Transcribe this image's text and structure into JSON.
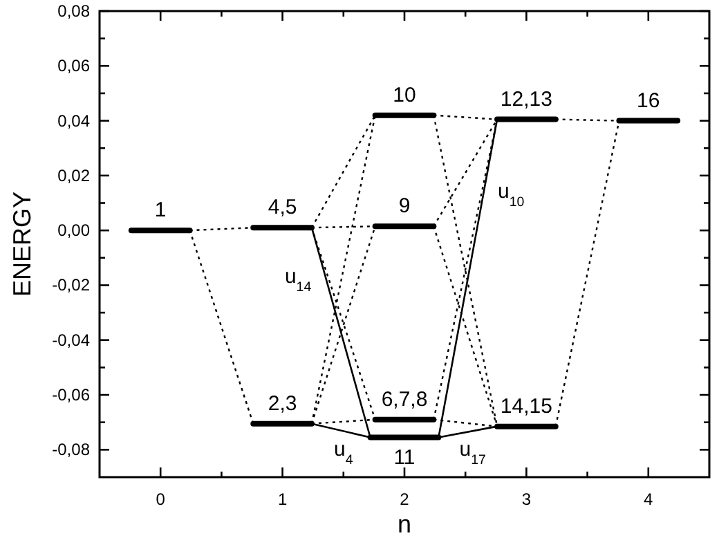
{
  "chart_data": {
    "type": "line",
    "xlabel": "n",
    "ylabel": "ENERGY",
    "xlim": [
      -0.5,
      4.5
    ],
    "ylim": [
      -0.09,
      0.08
    ],
    "xticks": [
      0,
      {
        "value": 0.5,
        "label": null
      },
      1,
      {
        "value": 1.5,
        "label": null
      },
      2,
      {
        "value": 2.5,
        "label": null
      },
      3,
      {
        "value": 3.5,
        "label": null
      },
      4
    ],
    "yticks": [
      {
        "value": 0.08,
        "label": "0,08"
      },
      {
        "value": 0.07,
        "label": null
      },
      {
        "value": 0.06,
        "label": "0,06"
      },
      {
        "value": 0.05,
        "label": null
      },
      {
        "value": 0.04,
        "label": "0,04"
      },
      {
        "value": 0.03,
        "label": null
      },
      {
        "value": 0.02,
        "label": "0,02"
      },
      {
        "value": 0.01,
        "label": null
      },
      {
        "value": 0,
        "label": "0,00"
      },
      {
        "value": -0.01,
        "label": null
      },
      {
        "value": -0.02,
        "label": "-0,02"
      },
      {
        "value": -0.03,
        "label": null
      },
      {
        "value": -0.04,
        "label": "-0,04"
      },
      {
        "value": -0.05,
        "label": null
      },
      {
        "value": -0.06,
        "label": "-0,06"
      },
      {
        "value": -0.07,
        "label": null
      },
      {
        "value": -0.08,
        "label": "-0,08"
      }
    ],
    "grid": false,
    "marker": "none",
    "series": [
      {
        "color": "#000000",
        "line_style": "solid",
        "x": [
          -0.24,
          0.24
        ],
        "values": [
          0,
          0
        ]
      },
      {
        "color": "#000000",
        "line_style": "solid",
        "x": [
          0.76,
          1.24
        ],
        "values": [
          0.001,
          0.001
        ]
      },
      {
        "color": "#000000",
        "line_style": "solid",
        "x": [
          0.76,
          1.24
        ],
        "values": [
          -0.0705,
          -0.0705
        ]
      },
      {
        "color": "#000000",
        "line_style": "solid",
        "x": [
          1.76,
          2.24
        ],
        "values": [
          0.042,
          0.042
        ]
      },
      {
        "color": "#000000",
        "line_style": "solid",
        "x": [
          1.76,
          2.24
        ],
        "values": [
          0.0015,
          0.0015
        ]
      },
      {
        "color": "#000000",
        "line_style": "solid",
        "x": [
          1.76,
          2.24
        ],
        "values": [
          -0.069,
          -0.069
        ]
      },
      {
        "color": "#000000",
        "line_style": "solid",
        "x": [
          1.72,
          2.28
        ],
        "values": [
          -0.0755,
          -0.0755
        ]
      },
      {
        "color": "#000000",
        "line_style": "solid",
        "x": [
          2.76,
          3.24
        ],
        "values": [
          0.0405,
          0.0405
        ]
      },
      {
        "color": "#000000",
        "line_style": "solid",
        "x": [
          2.76,
          3.24
        ],
        "values": [
          -0.0715,
          -0.0715
        ]
      },
      {
        "color": "#000000",
        "line_style": "solid",
        "x": [
          3.76,
          4.24
        ],
        "values": [
          0.04,
          0.04
        ]
      },
      {
        "color": "#000000",
        "line_style": "dotted",
        "x": [
          0.24,
          0.76
        ],
        "values": [
          0,
          0.001
        ]
      },
      {
        "color": "#000000",
        "line_style": "dotted",
        "x": [
          0.24,
          0.76
        ],
        "values": [
          0,
          -0.0705
        ]
      },
      {
        "color": "#000000",
        "line_style": "dotted",
        "x": [
          1.24,
          1.76
        ],
        "values": [
          0.001,
          0.0015
        ]
      },
      {
        "color": "#000000",
        "line_style": "dotted",
        "x": [
          1.24,
          1.76
        ],
        "values": [
          0.001,
          0.042
        ]
      },
      {
        "color": "#000000",
        "line_style": "dotted",
        "x": [
          1.24,
          1.76
        ],
        "values": [
          0.001,
          -0.069
        ]
      },
      {
        "color": "#000000",
        "line_style": "dotted",
        "x": [
          1.24,
          1.76
        ],
        "values": [
          -0.0705,
          0.042
        ]
      },
      {
        "color": "#000000",
        "line_style": "dotted",
        "x": [
          1.24,
          1.76
        ],
        "values": [
          -0.0705,
          0.0015
        ]
      },
      {
        "color": "#000000",
        "line_style": "dotted",
        "x": [
          1.24,
          1.76
        ],
        "values": [
          -0.0705,
          -0.069
        ]
      },
      {
        "color": "#000000",
        "line_style": "dotted",
        "x": [
          2.24,
          2.76
        ],
        "values": [
          0.042,
          0.0405
        ]
      },
      {
        "color": "#000000",
        "line_style": "dotted",
        "x": [
          2.24,
          2.76
        ],
        "values": [
          0.042,
          -0.0715
        ]
      },
      {
        "color": "#000000",
        "line_style": "dotted",
        "x": [
          2.24,
          2.76
        ],
        "values": [
          0.0015,
          0.0405
        ]
      },
      {
        "color": "#000000",
        "line_style": "dotted",
        "x": [
          2.24,
          2.76
        ],
        "values": [
          0.0015,
          -0.0715
        ]
      },
      {
        "color": "#000000",
        "line_style": "dotted",
        "x": [
          2.24,
          2.76
        ],
        "values": [
          -0.069,
          0.0405
        ]
      },
      {
        "color": "#000000",
        "line_style": "dotted",
        "x": [
          2.24,
          2.76
        ],
        "values": [
          -0.069,
          -0.0715
        ]
      },
      {
        "color": "#000000",
        "line_style": "dotted",
        "x": [
          3.24,
          3.76
        ],
        "values": [
          0.0405,
          0.04
        ]
      },
      {
        "color": "#000000",
        "line_style": "dotted",
        "x": [
          3.24,
          3.76
        ],
        "values": [
          -0.0715,
          0.04
        ]
      },
      {
        "color": "#000000",
        "line_style": "solid",
        "x": [
          1.24,
          1.72
        ],
        "values": [
          0.001,
          -0.0755
        ]
      },
      {
        "color": "#000000",
        "line_style": "solid",
        "x": [
          1.24,
          1.72
        ],
        "values": [
          -0.0705,
          -0.0755
        ]
      },
      {
        "color": "#000000",
        "line_style": "solid",
        "x": [
          2.28,
          2.76
        ],
        "values": [
          -0.0755,
          0.0405
        ]
      },
      {
        "color": "#000000",
        "line_style": "solid",
        "x": [
          2.28,
          2.76
        ],
        "values": [
          -0.0755,
          -0.0715
        ]
      }
    ],
    "annotations": [
      {
        "text": "1",
        "x": 0,
        "y": 0
      },
      {
        "text": "4,5",
        "x": 1,
        "y": 0.001
      },
      {
        "text": "2,3",
        "x": 1,
        "y": -0.0705
      },
      {
        "text": "10",
        "x": 2,
        "y": 0.042
      },
      {
        "text": "9",
        "x": 2,
        "y": 0.0015
      },
      {
        "text": "6,7,8",
        "x": 2,
        "y": -0.069
      },
      {
        "text": "11",
        "x": 2,
        "y": -0.0755
      },
      {
        "text": "12,13",
        "x": 3,
        "y": 0.0405
      },
      {
        "text": "14,15",
        "x": 3,
        "y": -0.0715
      },
      {
        "text": "16",
        "x": 4,
        "y": 0.04
      },
      {
        "text": "u$_{14}$",
        "x": 1.35,
        "y": -0.0165
      },
      {
        "text": "u$_{4}$",
        "x": 1.5,
        "y": -0.0732
      },
      {
        "text": "u$_{17}$",
        "x": 2.56,
        "y": -0.0732
      },
      {
        "text": "u$_{10}$",
        "x": 2.652,
        "y": 0.0145
      }
    ]
  }
}
